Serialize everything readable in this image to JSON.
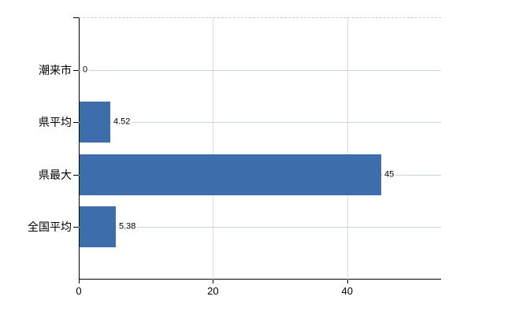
{
  "chart_data": {
    "type": "bar",
    "orientation": "horizontal",
    "title": "",
    "xlabel": "",
    "ylabel": "",
    "categories": [
      "潮来市",
      "県平均",
      "県最大",
      "全国平均"
    ],
    "values": [
      0,
      4.52,
      45,
      5.38
    ],
    "value_labels": [
      "0",
      "4.52",
      "45",
      "5.38"
    ],
    "xlim": [
      0,
      54
    ],
    "xticks": [
      0,
      20,
      40
    ],
    "xtick_labels": [
      "0",
      "20",
      "40"
    ],
    "grid": true,
    "legend": "none",
    "colors": {
      "bar": "#3d6eab",
      "h_gridline": "#ccd6cc",
      "v_gridline": "#dcdcdc",
      "axis": "#000000",
      "plot_top_border": "#c9c9c9",
      "text": "#000000",
      "background": "#ffffff"
    }
  }
}
